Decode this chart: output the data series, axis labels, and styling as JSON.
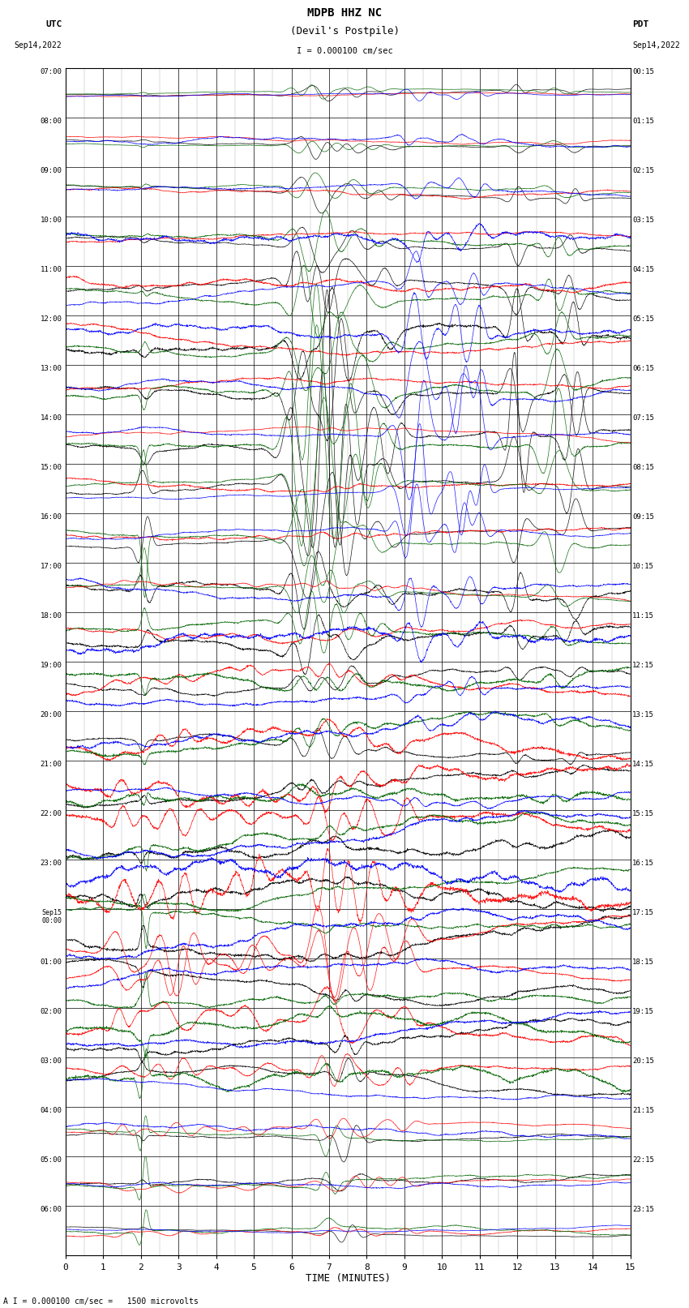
{
  "title_line1": "MDPB HHZ NC",
  "title_line2": "(Devil's Postpile)",
  "scale_label": "I = 0.000100 cm/sec",
  "bottom_label": "A I = 0.000100 cm/sec =   1500 microvolts",
  "xlabel": "TIME (MINUTES)",
  "left_header": "UTC",
  "left_date": "Sep14,2022",
  "right_header": "PDT",
  "right_date": "Sep14,2022",
  "xmin": 0,
  "xmax": 15,
  "n_rows": 24,
  "colors": [
    "black",
    "red",
    "darkgreen",
    "blue"
  ],
  "background_color": "#ffffff",
  "grid_color": "#000000",
  "figsize": [
    8.5,
    16.13
  ],
  "dpi": 100,
  "utc_labels": [
    "07:00",
    "08:00",
    "09:00",
    "10:00",
    "11:00",
    "12:00",
    "13:00",
    "14:00",
    "15:00",
    "16:00",
    "17:00",
    "18:00",
    "19:00",
    "20:00",
    "21:00",
    "22:00",
    "23:00",
    "Sep15\n00:00",
    "01:00",
    "02:00",
    "03:00",
    "04:00",
    "05:00",
    "06:00"
  ],
  "pdt_labels": [
    "00:15",
    "01:15",
    "02:15",
    "03:15",
    "04:15",
    "05:15",
    "06:15",
    "07:15",
    "08:15",
    "09:15",
    "10:15",
    "11:15",
    "12:15",
    "13:15",
    "14:15",
    "15:15",
    "16:15",
    "17:15",
    "18:15",
    "19:15",
    "20:15",
    "21:15",
    "22:15",
    "23:15"
  ],
  "x_ticks": [
    0,
    1,
    2,
    3,
    4,
    5,
    6,
    7,
    8,
    9,
    10,
    11,
    12,
    13,
    14,
    15
  ],
  "seed": 42,
  "n_pts": 2000
}
